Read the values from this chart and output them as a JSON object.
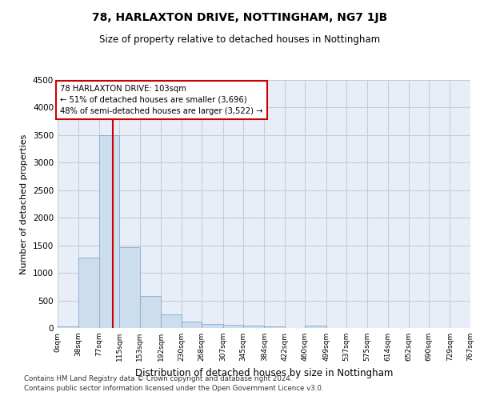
{
  "title": "78, HARLAXTON DRIVE, NOTTINGHAM, NG7 1JB",
  "subtitle": "Size of property relative to detached houses in Nottingham",
  "xlabel": "Distribution of detached houses by size in Nottingham",
  "ylabel": "Number of detached properties",
  "footer_line1": "Contains HM Land Registry data © Crown copyright and database right 2024.",
  "footer_line2": "Contains public sector information licensed under the Open Government Licence v3.0.",
  "bin_edges": [
    0,
    38,
    77,
    115,
    153,
    192,
    230,
    268,
    307,
    345,
    384,
    422,
    460,
    499,
    537,
    575,
    614,
    652,
    690,
    729,
    767
  ],
  "bar_heights": [
    30,
    1280,
    3500,
    1460,
    580,
    240,
    110,
    75,
    55,
    45,
    35,
    0,
    45,
    0,
    0,
    0,
    0,
    0,
    0,
    0
  ],
  "bar_color": "#ccdded",
  "bar_edge_color": "#88aacc",
  "grid_color": "#cccccc",
  "bg_color": "#e8eef8",
  "red_line_x": 103,
  "annotation_line1": "78 HARLAXTON DRIVE: 103sqm",
  "annotation_line2": "← 51% of detached houses are smaller (3,696)",
  "annotation_line3": "48% of semi-detached houses are larger (3,522) →",
  "annotation_box_color": "#ffffff",
  "annotation_box_edge": "#cc0000",
  "red_line_color": "#cc0000",
  "ylim": [
    0,
    4500
  ],
  "yticks": [
    0,
    500,
    1000,
    1500,
    2000,
    2500,
    3000,
    3500,
    4000,
    4500
  ]
}
